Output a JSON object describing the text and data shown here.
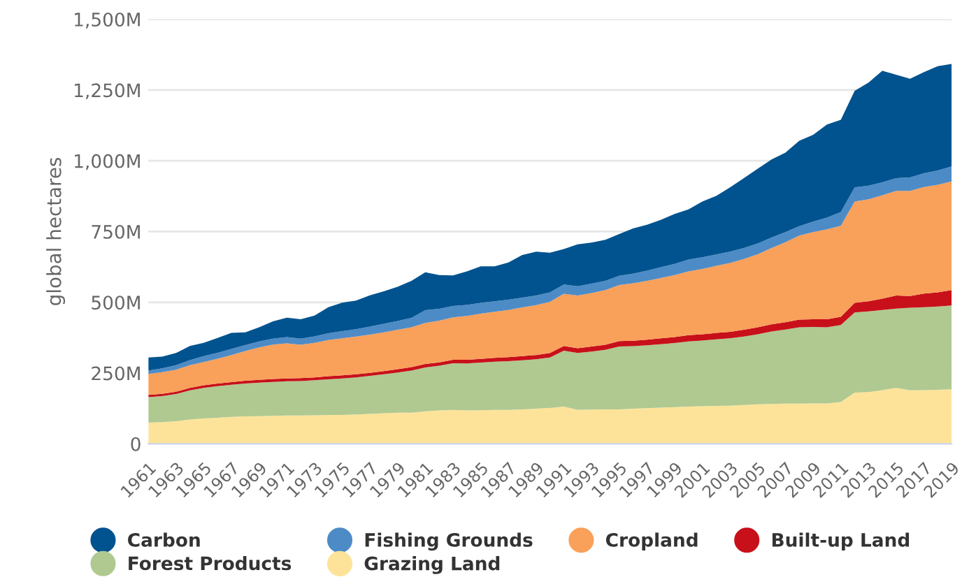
{
  "chart_data": {
    "type": "area",
    "stacked": true,
    "ylabel": "global hectares",
    "categories": [
      "1961",
      null,
      "1963",
      null,
      "1965",
      null,
      "1967",
      null,
      "1969",
      null,
      "1971",
      null,
      "1973",
      null,
      "1975",
      null,
      "1977",
      null,
      "1979",
      null,
      "1981",
      null,
      "1983",
      null,
      "1985",
      null,
      "1987",
      null,
      "1989",
      null,
      "1991",
      null,
      "1993",
      null,
      "1995",
      null,
      "1997",
      null,
      "1999",
      null,
      "2001",
      null,
      "2003",
      null,
      "2005",
      null,
      "2007",
      null,
      "2009",
      null,
      "2011",
      null,
      "2013",
      null,
      "2015",
      null,
      "2017",
      null,
      "2019"
    ],
    "series": [
      {
        "name": "Grazing Land",
        "color": "#fde39a",
        "values": [
          75,
          77,
          80,
          86,
          90,
          92,
          95,
          97,
          98,
          99,
          100,
          100,
          101,
          102,
          102,
          104,
          106,
          108,
          110,
          110,
          115,
          118,
          120,
          118,
          119,
          120,
          120,
          122,
          124,
          127,
          132,
          120,
          121,
          122,
          122,
          124,
          126,
          128,
          130,
          132,
          133,
          134,
          135,
          137,
          140,
          141,
          142,
          142,
          143,
          143,
          148,
          181,
          183,
          190,
          198,
          189,
          190,
          191,
          193
        ]
      },
      {
        "name": "Forest Products",
        "color": "#afc991",
        "values": [
          90,
          92,
          96,
          103,
          108,
          112,
          114,
          116,
          118,
          120,
          121,
          122,
          124,
          126,
          129,
          131,
          134,
          138,
          142,
          149,
          155,
          158,
          165,
          166,
          168,
          170,
          172,
          173,
          175,
          178,
          197,
          201,
          205,
          210,
          222,
          221,
          222,
          224,
          226,
          230,
          232,
          235,
          238,
          242,
          247,
          256,
          262,
          270,
          270,
          269,
          272,
          283,
          285,
          283,
          280,
          292,
          293,
          294,
          296
        ]
      },
      {
        "name": "Built-up Land",
        "color": "#c8101a",
        "values": [
          8,
          8,
          8,
          9,
          9,
          9,
          9,
          10,
          10,
          10,
          10,
          10,
          10,
          11,
          11,
          11,
          11,
          11,
          12,
          12,
          12,
          12,
          12,
          13,
          13,
          14,
          14,
          15,
          15,
          16,
          17,
          17,
          18,
          18,
          19,
          19,
          20,
          21,
          21,
          22,
          22,
          23,
          23,
          24,
          25,
          25,
          26,
          27,
          27,
          28,
          29,
          34,
          36,
          40,
          46,
          41,
          48,
          50,
          54
        ]
      },
      {
        "name": "Cropland",
        "color": "#f9a05a",
        "values": [
          74,
          76,
          78,
          80,
          82,
          88,
          96,
          105,
          115,
          122,
          124,
          118,
          122,
          128,
          131,
          133,
          135,
          137,
          139,
          141,
          145,
          147,
          150,
          155,
          160,
          163,
          167,
          172,
          176,
          181,
          184,
          186,
          189,
          193,
          198,
          203,
          208,
          213,
          219,
          225,
          231,
          237,
          243,
          250,
          258,
          270,
          282,
          297,
          308,
          318,
          321,
          358,
          360,
          365,
          370,
          372,
          376,
          380,
          384
        ]
      },
      {
        "name": "Fishing Grounds",
        "color": "#4d8bc6",
        "values": [
          12,
          14,
          16,
          18,
          21,
          21,
          21,
          21,
          21,
          21,
          22,
          22,
          23,
          24,
          25,
          26,
          28,
          30,
          31,
          33,
          45,
          42,
          40,
          39,
          38,
          37,
          36,
          35,
          34,
          33,
          33,
          33,
          33,
          33,
          33,
          34,
          36,
          38,
          40,
          42,
          41,
          40,
          40,
          39,
          38,
          37,
          36,
          33,
          37,
          41,
          49,
          50,
          48,
          46,
          45,
          47,
          49,
          51,
          53
        ]
      },
      {
        "name": "Carbon",
        "color": "#00538f",
        "values": [
          46,
          41,
          43,
          50,
          47,
          52,
          57,
          45,
          50,
          61,
          69,
          68,
          73,
          92,
          101,
          101,
          111,
          115,
          121,
          131,
          134,
          119,
          108,
          118,
          129,
          123,
          132,
          150,
          155,
          140,
          125,
          148,
          145,
          145,
          147,
          160,
          162,
          167,
          176,
          177,
          197,
          207,
          227,
          247,
          264,
          276,
          281,
          302,
          307,
          329,
          326,
          341,
          364,
          394,
          365,
          349,
          357,
          368,
          362
        ]
      }
    ],
    "ylim": [
      0,
      1500
    ],
    "yticks": [
      0,
      {
        "value": 250,
        "label": "250M"
      },
      {
        "value": 500,
        "label": "500M"
      },
      {
        "value": 750,
        "label": "750M"
      },
      {
        "value": 1000,
        "label": "1,000M"
      },
      {
        "value": 1250,
        "label": "1,250M"
      },
      {
        "value": 1500,
        "label": "1,500M"
      }
    ],
    "grid": "y",
    "legend": "bottom"
  }
}
